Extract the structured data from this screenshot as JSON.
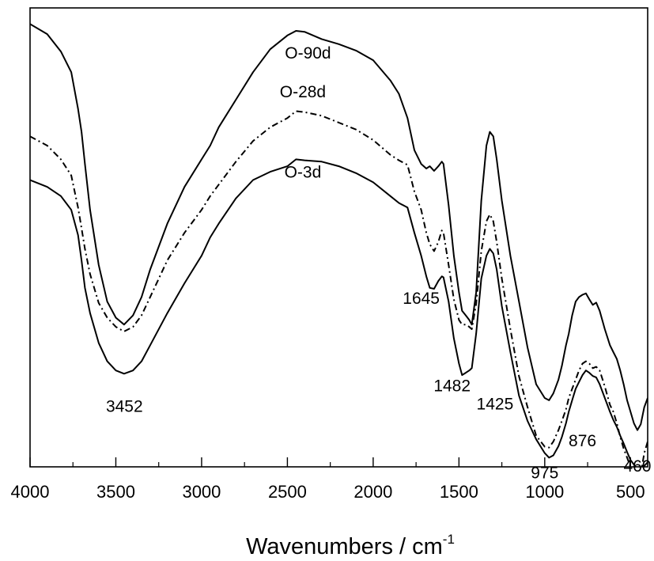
{
  "chart_data": {
    "type": "line",
    "xlabel": "Wavenumbers / cm",
    "xlabel_superscript": "-1",
    "ylabel": "",
    "xlim": [
      4000,
      400
    ],
    "ylim": [
      0,
      100
    ],
    "x_reversed": true,
    "y_ticks_shown": false,
    "grid": false,
    "x_ticks": [
      {
        "value": 4000,
        "label": "4000"
      },
      {
        "value": 3500,
        "label": "3500"
      },
      {
        "value": 3000,
        "label": "3000"
      },
      {
        "value": 2500,
        "label": "2500"
      },
      {
        "value": 2000,
        "label": "2000"
      },
      {
        "value": 1500,
        "label": "1500"
      },
      {
        "value": 1000,
        "label": "1000"
      },
      {
        "value": 500,
        "label": "500"
      }
    ],
    "x_minor_ticks": [
      3750,
      3250,
      2750,
      2250,
      1750,
      1250,
      750
    ],
    "series": [
      {
        "name": "O-90d",
        "style": "solid",
        "color": "#000000",
        "x": [
          4000,
          3900,
          3820,
          3760,
          3720,
          3700,
          3680,
          3650,
          3600,
          3550,
          3500,
          3452,
          3400,
          3350,
          3300,
          3200,
          3100,
          3000,
          2950,
          2900,
          2800,
          2700,
          2600,
          2500,
          2450,
          2400,
          2300,
          2200,
          2100,
          2000,
          1900,
          1850,
          1800,
          1760,
          1720,
          1690,
          1670,
          1645,
          1620,
          1600,
          1590,
          1560,
          1530,
          1500,
          1482,
          1460,
          1440,
          1425,
          1400,
          1370,
          1340,
          1320,
          1300,
          1280,
          1250,
          1200,
          1150,
          1100,
          1050,
          1000,
          975,
          950,
          920,
          900,
          876,
          860,
          840,
          820,
          800,
          780,
          760,
          740,
          720,
          700,
          680,
          650,
          620,
          600,
          580,
          560,
          540,
          520,
          500,
          480,
          460,
          440,
          420,
          400
        ],
        "values": [
          96.5,
          94.3,
          90.5,
          86,
          78,
          73,
          66,
          56,
          44,
          36,
          32.5,
          31,
          33,
          37,
          43,
          53,
          61,
          67,
          70,
          74,
          80,
          86,
          91,
          94,
          95,
          94.8,
          93.2,
          92.1,
          90.7,
          88.6,
          84.2,
          81.3,
          76,
          69,
          66,
          65,
          65.5,
          64.5,
          65.5,
          66.5,
          66,
          57,
          46,
          38,
          34,
          33,
          32,
          31,
          38,
          58,
          70,
          73,
          72,
          67,
          58,
          46,
          36,
          26,
          18,
          15,
          14.5,
          16,
          19,
          22,
          26.5,
          29,
          33,
          36,
          37,
          37.5,
          37.8,
          36.5,
          35.3,
          35.8,
          34,
          30,
          26.5,
          25,
          23.5,
          21,
          18,
          14.5,
          12,
          9.5,
          8,
          9.3,
          13,
          15
        ]
      },
      {
        "name": "O-28d",
        "style": "dashdot",
        "color": "#000000",
        "x": [
          4000,
          3900,
          3820,
          3760,
          3720,
          3700,
          3680,
          3650,
          3600,
          3550,
          3500,
          3452,
          3400,
          3350,
          3300,
          3200,
          3100,
          3000,
          2950,
          2900,
          2800,
          2700,
          2600,
          2500,
          2450,
          2400,
          2300,
          2200,
          2100,
          2000,
          1900,
          1850,
          1800,
          1760,
          1720,
          1690,
          1670,
          1645,
          1620,
          1600,
          1590,
          1560,
          1530,
          1500,
          1482,
          1460,
          1440,
          1425,
          1400,
          1370,
          1340,
          1320,
          1300,
          1280,
          1250,
          1200,
          1150,
          1100,
          1050,
          1000,
          975,
          950,
          920,
          900,
          876,
          860,
          840,
          820,
          800,
          780,
          760,
          740,
          720,
          700,
          680,
          650,
          620,
          600,
          580,
          560,
          540,
          520,
          500,
          480,
          460,
          440,
          420,
          400
        ],
        "values": [
          72,
          70,
          67,
          63.5,
          56.5,
          52,
          47.5,
          42,
          35.7,
          32.5,
          30.5,
          29.5,
          30.5,
          33,
          37,
          45,
          51,
          56,
          59,
          61.5,
          66.5,
          71,
          74,
          76,
          77.5,
          77.3,
          76.5,
          75,
          73.5,
          71.2,
          68,
          66.8,
          65.8,
          60,
          56,
          51,
          48.5,
          47,
          49,
          51.5,
          51,
          44,
          36.5,
          32,
          31,
          31,
          30.5,
          30,
          35.5,
          47,
          53.5,
          55,
          53.5,
          49,
          41,
          30,
          19.7,
          13,
          6.8,
          4.4,
          4.2,
          5.5,
          8,
          10,
          12.5,
          15,
          17,
          19,
          21,
          22.5,
          23,
          22.5,
          21.5,
          21.8,
          21,
          17.5,
          13.5,
          12,
          9.5,
          6.5,
          4,
          2,
          0,
          -1.5,
          -2.5,
          -1.4,
          3,
          5.5
        ]
      },
      {
        "name": "O-3d",
        "style": "solid",
        "color": "#000000",
        "x": [
          4000,
          3900,
          3820,
          3760,
          3720,
          3700,
          3680,
          3650,
          3600,
          3550,
          3500,
          3452,
          3400,
          3350,
          3300,
          3200,
          3100,
          3000,
          2950,
          2900,
          2800,
          2700,
          2600,
          2500,
          2450,
          2400,
          2300,
          2200,
          2100,
          2000,
          1900,
          1850,
          1800,
          1760,
          1720,
          1690,
          1670,
          1645,
          1620,
          1600,
          1590,
          1560,
          1530,
          1500,
          1482,
          1460,
          1440,
          1425,
          1400,
          1370,
          1340,
          1320,
          1300,
          1280,
          1250,
          1200,
          1150,
          1100,
          1050,
          1000,
          975,
          950,
          920,
          900,
          876,
          860,
          840,
          820,
          800,
          780,
          760,
          740,
          720,
          700,
          680,
          650,
          620,
          600,
          580,
          560,
          540,
          520,
          500,
          480,
          460,
          440,
          420,
          400
        ],
        "values": [
          62.5,
          61,
          59,
          56,
          50.5,
          45,
          39,
          33.5,
          27,
          23,
          21,
          20.3,
          21,
          23,
          26.5,
          33.5,
          40,
          46,
          50,
          53,
          58.5,
          62.5,
          64.3,
          65.5,
          67,
          66.8,
          66.5,
          65.5,
          64,
          62,
          59,
          57.5,
          56.5,
          51,
          46,
          41.5,
          39,
          38.8,
          40.5,
          41.5,
          41.3,
          36,
          28,
          22.5,
          20,
          20.5,
          21,
          21.5,
          29,
          41,
          46,
          47.5,
          46.5,
          43,
          35,
          25,
          15.5,
          10,
          6,
          3,
          2,
          2.5,
          4.5,
          6.5,
          9.5,
          12,
          14.5,
          17,
          18.5,
          20,
          21,
          20.5,
          19.8,
          19.5,
          18,
          15,
          12,
          10.2,
          8.7,
          6.8,
          5.1,
          3.2,
          1.5,
          0.5,
          -0.5,
          -0.8,
          0.2,
          1
        ]
      }
    ],
    "annotations": [
      {
        "text": "O-90d",
        "x": 2380,
        "y": 89
      },
      {
        "text": "O-28d",
        "x": 2410,
        "y": 80.5
      },
      {
        "text": "O-3d",
        "x": 2410,
        "y": 63
      },
      {
        "text": "3452",
        "x": 3450,
        "y": 12
      },
      {
        "text": "1645",
        "x": 1720,
        "y": 35.5
      },
      {
        "text": "1482",
        "x": 1540,
        "y": 16.5
      },
      {
        "text": "1425",
        "x": 1290,
        "y": 12.5
      },
      {
        "text": "975",
        "x": 1000,
        "y": -2.5
      },
      {
        "text": "876",
        "x": 780,
        "y": 4.5
      },
      {
        "text": "460",
        "x": 460,
        "y": -1
      }
    ]
  }
}
